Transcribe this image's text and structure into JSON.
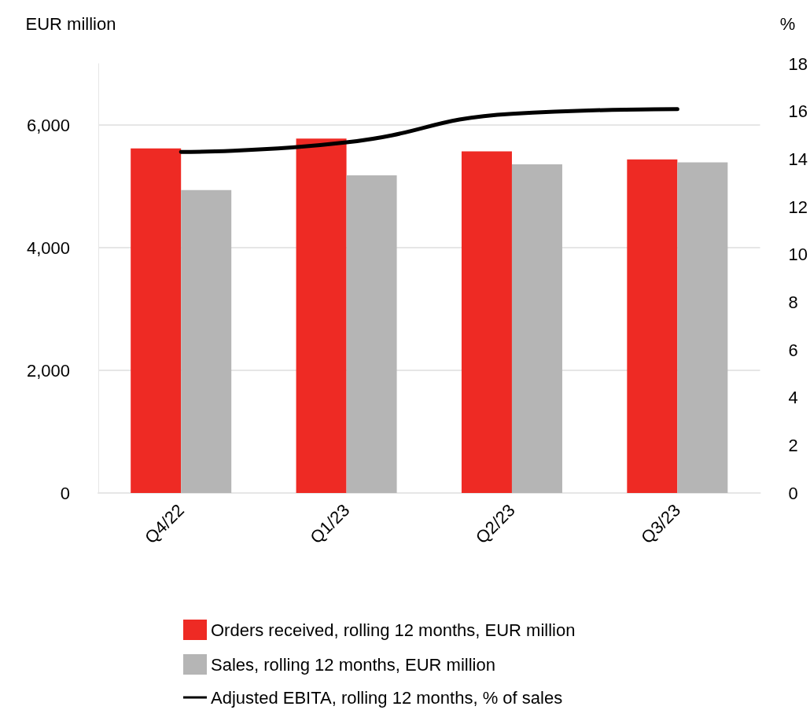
{
  "chart_data": {
    "type": "bar",
    "ylabel": "EUR million",
    "y2label": "%",
    "categories": [
      "Q4/22",
      "Q1/23",
      "Q2/23",
      "Q3/23"
    ],
    "series": [
      {
        "name": "Orders received, rolling 12 months, EUR million",
        "color": "#ee2a24",
        "values": [
          5620,
          5780,
          5570,
          5440
        ]
      },
      {
        "name": "Sales, rolling 12 months, EUR million",
        "color": "#b5b5b5",
        "values": [
          4940,
          5180,
          5360,
          5390
        ]
      },
      {
        "name": "Adjusted EBITA, rolling 12 months, % of sales",
        "type": "line",
        "axis": "y2",
        "color": "#000000",
        "values": [
          14.3,
          14.7,
          15.9,
          16.1
        ]
      }
    ],
    "ylim": [
      0,
      7000
    ],
    "yticks": [
      0,
      {
        "value": 2000,
        "label": "2,000"
      },
      {
        "value": 4000,
        "label": "4,000"
      },
      {
        "value": 6000,
        "label": "6,000"
      }
    ],
    "y2lim": [
      0,
      18
    ],
    "y2ticks": [
      0,
      2,
      4,
      6,
      8,
      10,
      12,
      14,
      16,
      18
    ],
    "grid": "y",
    "legend": "bottom",
    "marker": "none",
    "line_style": "solid"
  }
}
